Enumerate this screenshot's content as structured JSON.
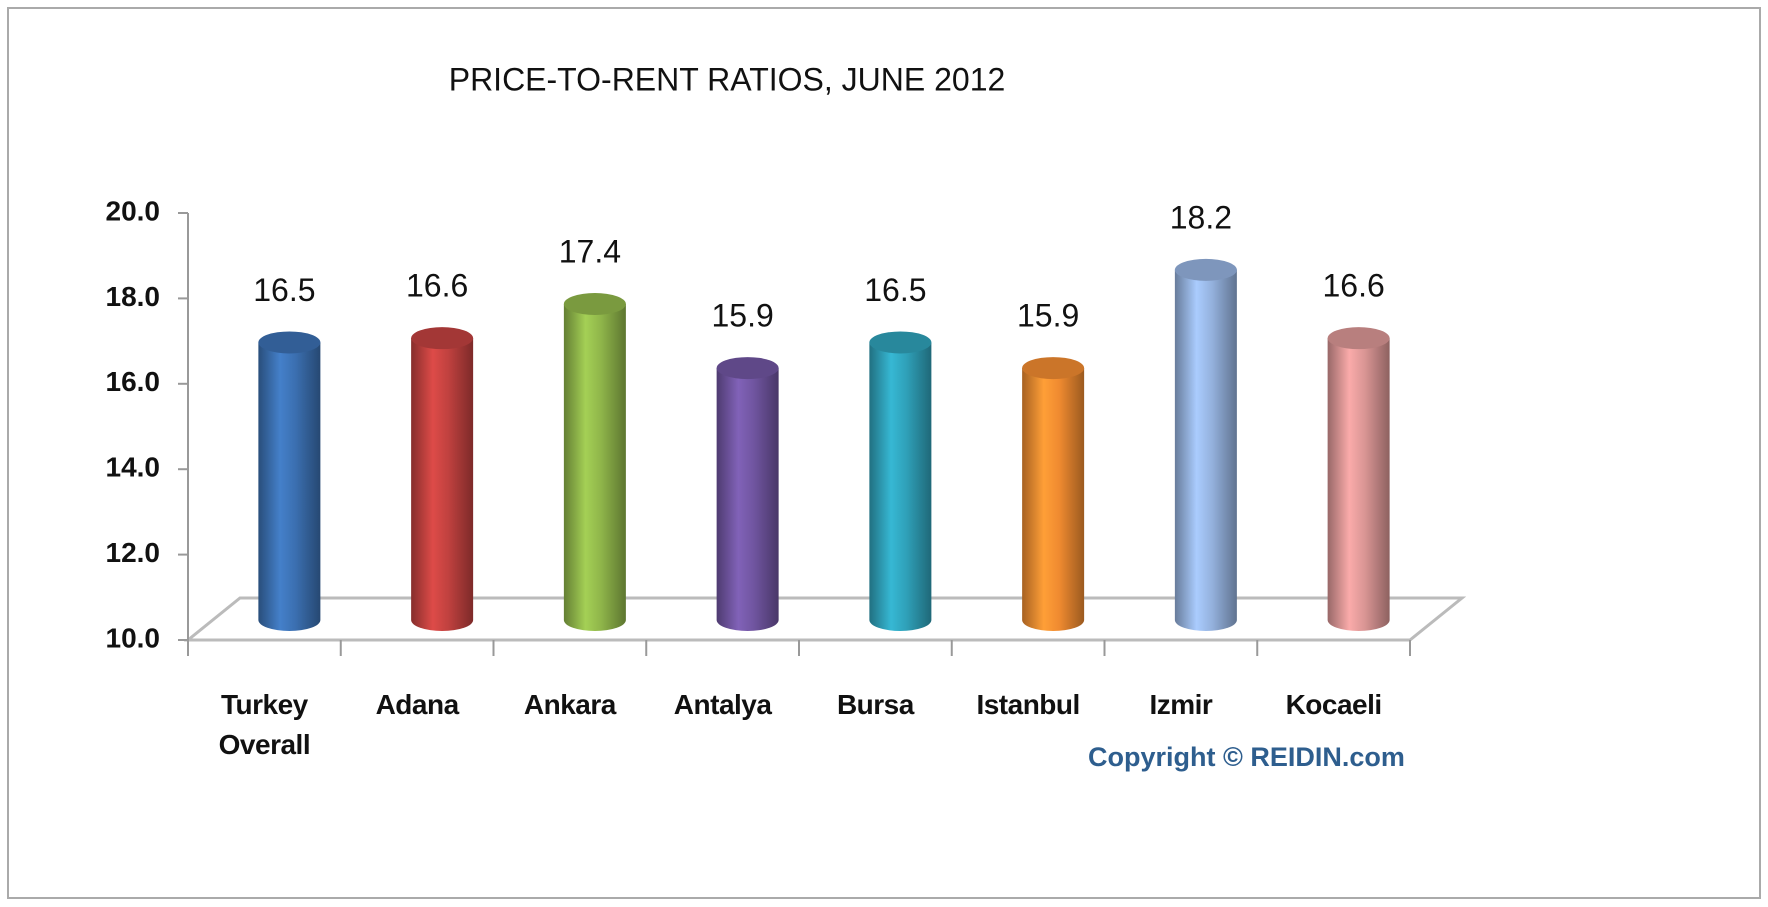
{
  "chart_data": {
    "type": "bar",
    "title": "PRICE-TO-RENT RATIOS, JUNE 2012",
    "categories": [
      "Turkey Overall",
      "Adana",
      "Ankara",
      "Antalya",
      "Bursa",
      "Istanbul",
      "Izmir",
      "Kocaeli"
    ],
    "values": [
      16.5,
      16.6,
      17.4,
      15.9,
      16.5,
      15.9,
      18.2,
      16.6
    ],
    "colors": [
      "#3b6fb0",
      "#c0413f",
      "#8fb54a",
      "#7055a0",
      "#2fa0b8",
      "#ef8a30",
      "#94b1dd",
      "#d99594"
    ],
    "ylim": [
      10,
      20
    ],
    "yticks": [
      {
        "value": 10,
        "label": "10.0"
      },
      {
        "value": 12,
        "label": "12.0"
      },
      {
        "value": 14,
        "label": "14.0"
      },
      {
        "value": 16,
        "label": "16.0"
      },
      {
        "value": 18,
        "label": "18.0"
      },
      {
        "value": 20,
        "label": "20.0"
      }
    ],
    "annotation": "Copyright © REIDIN.com"
  }
}
